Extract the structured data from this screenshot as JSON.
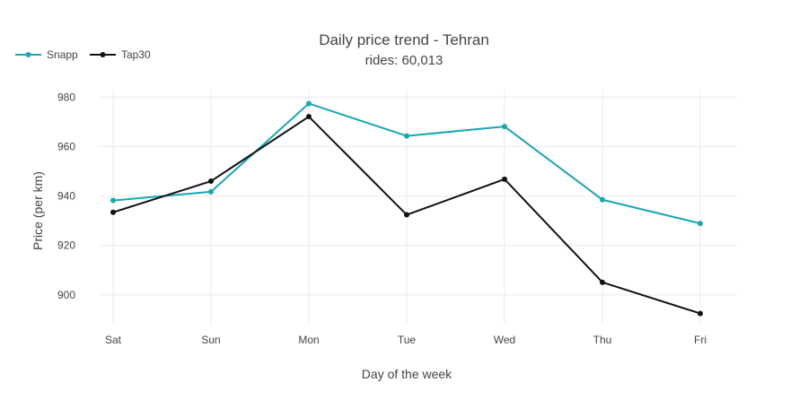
{
  "chart_data": {
    "type": "line",
    "title": "Daily price trend - Tehran",
    "subtitle": "rides: 60,013",
    "xlabel": "Day of the week",
    "ylabel": "Price (per km)",
    "categories": [
      "Sat",
      "Sun",
      "Mon",
      "Tue",
      "Wed",
      "Thu",
      "Fri"
    ],
    "ylim": [
      888,
      983
    ],
    "yticks": [
      900,
      920,
      940,
      960,
      980
    ],
    "grid": true,
    "legend_position": "top-left",
    "series": [
      {
        "name": "Snapp",
        "color": "#17a7b5",
        "values": [
          938.2,
          941.7,
          977.4,
          964.3,
          968.1,
          938.5,
          928.9
        ]
      },
      {
        "name": "Tap30",
        "color": "#111111",
        "values": [
          933.4,
          946.0,
          972.1,
          932.4,
          946.8,
          905.1,
          892.5
        ]
      }
    ]
  }
}
